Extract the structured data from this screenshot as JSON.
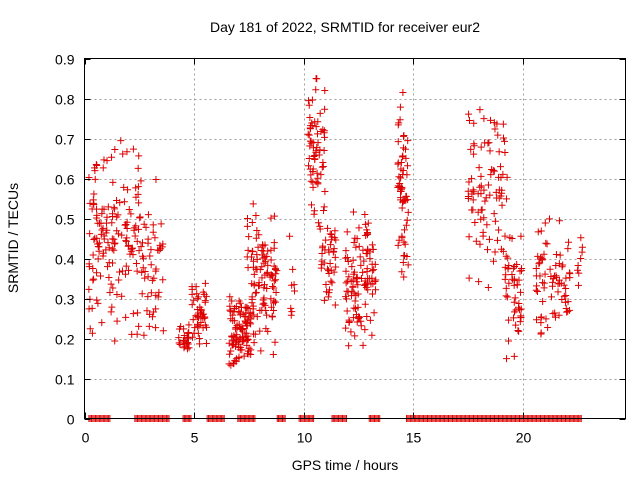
{
  "chart_data": {
    "type": "scatter",
    "title": "Day 181 of 2022, SRMTID for receiver eur2",
    "xlabel": "GPS time / hours",
    "ylabel": "SRMTID / TECUs",
    "xlim": [
      0,
      24.7
    ],
    "ylim": [
      0,
      0.9
    ],
    "x_ticks": [
      0,
      5,
      10,
      15,
      20
    ],
    "x_tick_labels": [
      "0",
      "5",
      "10",
      "15",
      "20"
    ],
    "y_ticks": [
      0,
      0.1,
      0.2,
      0.3,
      0.4,
      0.5,
      0.6,
      0.7,
      0.8,
      0.9
    ],
    "y_tick_labels": [
      "0",
      "0.1",
      "0.2",
      "0.3",
      "0.4",
      "0.5",
      "0.6",
      "0.7",
      "0.8",
      "0.9"
    ],
    "grid": true,
    "marker": "+",
    "color": "#dd0000",
    "clusters": [
      {
        "x_range": [
          0.2,
          2.5
        ],
        "y_range": [
          0.17,
          0.72
        ],
        "count": 150
      },
      {
        "x_range": [
          2.4,
          3.6
        ],
        "y_range": [
          0.14,
          0.62
        ],
        "count": 55
      },
      {
        "x_range": [
          4.3,
          4.8
        ],
        "y_range": [
          0.16,
          0.24
        ],
        "count": 25
      },
      {
        "x_range": [
          4.9,
          5.6
        ],
        "y_range": [
          0.16,
          0.37
        ],
        "count": 45
      },
      {
        "x_range": [
          6.6,
          7.6
        ],
        "y_range": [
          0.12,
          0.32
        ],
        "count": 100
      },
      {
        "x_range": [
          7.4,
          8.8
        ],
        "y_range": [
          0.14,
          0.56
        ],
        "count": 110
      },
      {
        "x_range": [
          9.3,
          9.6
        ],
        "y_range": [
          0.2,
          0.5
        ],
        "count": 8
      },
      {
        "x_range": [
          10.2,
          11.0
        ],
        "y_range": [
          0.45,
          0.89
        ],
        "count": 70
      },
      {
        "x_range": [
          10.8,
          11.5
        ],
        "y_range": [
          0.27,
          0.5
        ],
        "count": 40
      },
      {
        "x_range": [
          11.9,
          13.3
        ],
        "y_range": [
          0.16,
          0.55
        ],
        "count": 110
      },
      {
        "x_range": [
          14.3,
          14.8
        ],
        "y_range": [
          0.3,
          0.9
        ],
        "count": 60
      },
      {
        "x_range": [
          17.5,
          19.3
        ],
        "y_range": [
          0.28,
          0.83
        ],
        "count": 90
      },
      {
        "x_range": [
          19.2,
          20.0
        ],
        "y_range": [
          0.12,
          0.5
        ],
        "count": 50
      },
      {
        "x_range": [
          20.6,
          22.2
        ],
        "y_range": [
          0.15,
          0.52
        ],
        "count": 75
      },
      {
        "x_range": [
          22.5,
          22.8
        ],
        "y_range": [
          0.33,
          0.46
        ],
        "count": 8
      }
    ],
    "zero_band_segments": [
      [
        0.2,
        1.2
      ],
      [
        2.3,
        3.9
      ],
      [
        4.5,
        4.9
      ],
      [
        5.6,
        6.4
      ],
      [
        7.0,
        7.8
      ],
      [
        8.8,
        9.2
      ],
      [
        9.8,
        10.5
      ],
      [
        11.3,
        12.0
      ],
      [
        13.0,
        13.5
      ],
      [
        14.7,
        22.7
      ]
    ],
    "seed": 181
  }
}
